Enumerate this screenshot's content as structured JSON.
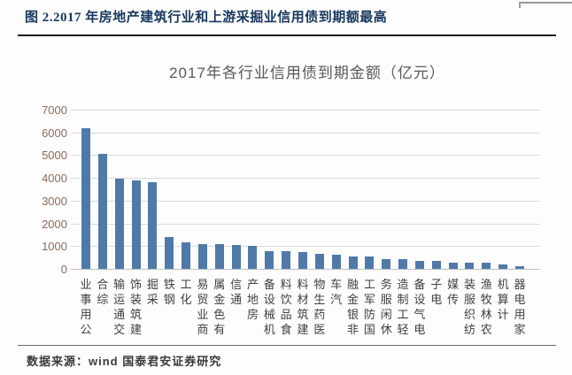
{
  "figure_header": {
    "title": "图 2.2017 年房地产建筑行业和上游采掘业信用债到期额最高"
  },
  "chart_data": {
    "type": "bar",
    "title": "2017年各行业信用债到期金额（亿元）",
    "categories": [
      "公用事业",
      "综合",
      "交通运输",
      "建筑装饰",
      "采掘",
      "钢铁",
      "化工",
      "商业贸易",
      "有色金属",
      "通信",
      "房地产",
      "机械设备",
      "食品饮料",
      "建筑材料",
      "医药生物",
      "汽车",
      "非银金融",
      "国防军工",
      "休闲服务",
      "轻工制造",
      "电气设备",
      "电子",
      "传媒",
      "纺织服装",
      "农林牧渔",
      "计算机",
      "家用电器"
    ],
    "values": [
      6200,
      5050,
      3950,
      3900,
      3820,
      1400,
      1170,
      1100,
      1070,
      1050,
      1020,
      780,
      760,
      730,
      660,
      620,
      540,
      530,
      440,
      410,
      360,
      350,
      290,
      285,
      260,
      190,
      130
    ],
    "xlabel": "",
    "ylabel": "",
    "ylim": [
      0,
      7000
    ],
    "yticks": [
      0,
      1000,
      2000,
      3000,
      4000,
      5000,
      6000,
      7000
    ],
    "grid": true,
    "legend": "none",
    "x_label_style": "vertical, characters upright, reading bottom-to-top"
  },
  "footer": {
    "source": "数据来源：wind 国泰君安证券研究"
  },
  "colors": {
    "header_text": "#17375e",
    "header_rule": "#1c1c24",
    "chart_title": "#595959",
    "bar": "#4f7aa8",
    "grid": "#d9d9d9",
    "axis_line": "#c0c0c0",
    "y_tick_label": "#8c6a5a",
    "x_tick_label": "#3f3f3f",
    "footer_text": "#3a3a3a"
  }
}
